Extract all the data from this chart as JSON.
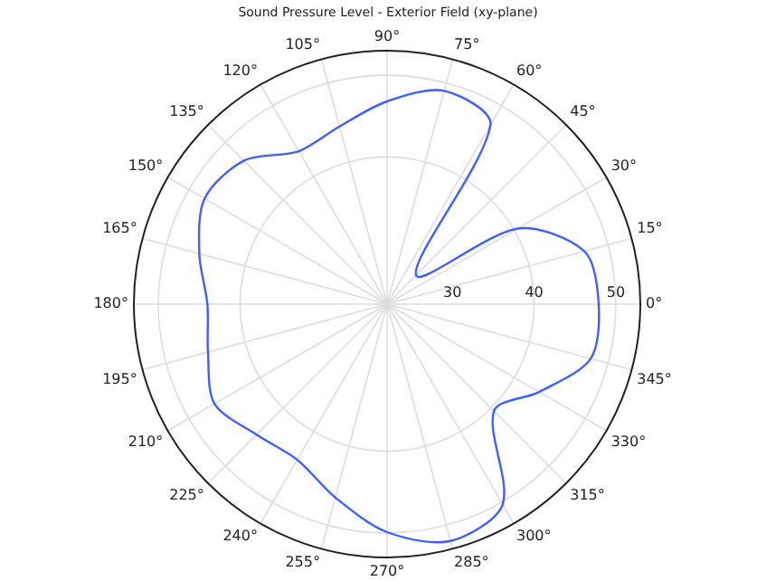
{
  "chart_data": {
    "type": "radar",
    "title": "Sound Pressure Level - Exterior Field (xy-plane)",
    "categories": [
      "90°",
      "75°",
      "60°",
      "45°",
      "30°",
      "15°",
      "0°",
      "345°",
      "330°",
      "315°",
      "300°",
      "285°",
      "270°",
      "255°",
      "240°",
      "225°",
      "210°",
      "195°",
      "180°",
      "165°",
      "150°",
      "135°",
      "120°",
      "105°"
    ],
    "series": [
      {
        "color": "#3f5fff",
        "values": [
          46.8,
          49.0,
          47.3,
          27,
          40.5,
          47.0,
          47.9,
          47.8,
          43.5,
          40.5,
          50.3,
          52,
          49.9,
          46.5,
          44,
          44.6,
          46.4,
          44.7,
          44,
          45.8,
          47.8,
          46.8,
          43.6,
          44.5
        ]
      }
    ],
    "ylim": [
      22,
      53
    ],
    "yticks": [
      30,
      40,
      50
    ],
    "grid": true,
    "legend": false,
    "marker": "none"
  }
}
